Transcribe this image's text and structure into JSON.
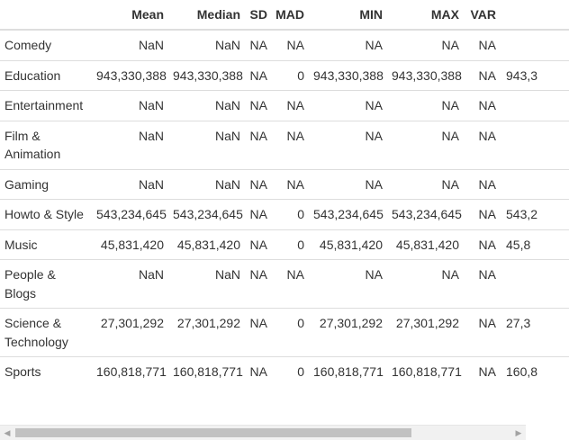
{
  "columns": [
    "",
    "Mean",
    "Median",
    "SD",
    "MAD",
    "MIN",
    "MAX",
    "VAR",
    ""
  ],
  "rows": [
    {
      "name": "Comedy",
      "mean": "NaN",
      "median": "NaN",
      "sd": "NA",
      "mad": "NA",
      "min": "NA",
      "max": "NA",
      "var": "NA",
      "extra": ""
    },
    {
      "name": "Education",
      "mean": "943,330,388",
      "median": "943,330,388",
      "sd": "NA",
      "mad": "0",
      "min": "943,330,388",
      "max": "943,330,388",
      "var": "NA",
      "extra": "943,3"
    },
    {
      "name": "Entertainment",
      "mean": "NaN",
      "median": "NaN",
      "sd": "NA",
      "mad": "NA",
      "min": "NA",
      "max": "NA",
      "var": "NA",
      "extra": ""
    },
    {
      "name": "Film & Animation",
      "mean": "NaN",
      "median": "NaN",
      "sd": "NA",
      "mad": "NA",
      "min": "NA",
      "max": "NA",
      "var": "NA",
      "extra": ""
    },
    {
      "name": "Gaming",
      "mean": "NaN",
      "median": "NaN",
      "sd": "NA",
      "mad": "NA",
      "min": "NA",
      "max": "NA",
      "var": "NA",
      "extra": ""
    },
    {
      "name": "Howto & Style",
      "mean": "543,234,645",
      "median": "543,234,645",
      "sd": "NA",
      "mad": "0",
      "min": "543,234,645",
      "max": "543,234,645",
      "var": "NA",
      "extra": "543,2"
    },
    {
      "name": "Music",
      "mean": "45,831,420",
      "median": "45,831,420",
      "sd": "NA",
      "mad": "0",
      "min": "45,831,420",
      "max": "45,831,420",
      "var": "NA",
      "extra": "45,8"
    },
    {
      "name": "People & Blogs",
      "mean": "NaN",
      "median": "NaN",
      "sd": "NA",
      "mad": "NA",
      "min": "NA",
      "max": "NA",
      "var": "NA",
      "extra": ""
    },
    {
      "name": "Science & Technology",
      "mean": "27,301,292",
      "median": "27,301,292",
      "sd": "NA",
      "mad": "0",
      "min": "27,301,292",
      "max": "27,301,292",
      "var": "NA",
      "extra": "27,3"
    },
    {
      "name": "Sports",
      "mean": "160,818,771",
      "median": "160,818,771",
      "sd": "NA",
      "mad": "0",
      "min": "160,818,771",
      "max": "160,818,771",
      "var": "NA",
      "extra": "160,8"
    }
  ],
  "scrollbar": {
    "left_arrow": "◀",
    "right_arrow": "▶",
    "position_fraction": 0.0,
    "visible_fraction": 0.8
  }
}
